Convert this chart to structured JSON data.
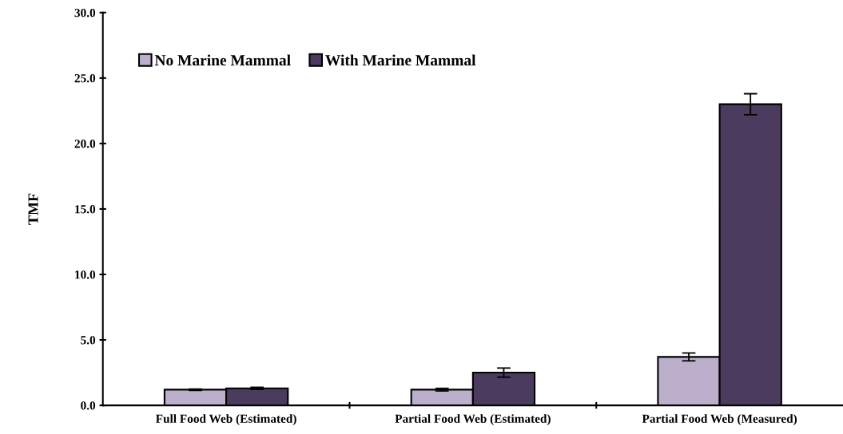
{
  "chart_data": {
    "type": "bar",
    "ylabel": "TMF",
    "categories": [
      "Full Food Web (Estimated)",
      "Partial Food Web (Estimated)",
      "Partial Food Web (Measured)"
    ],
    "series": [
      {
        "name": "No Marine Mammal",
        "color": "#bcafcc",
        "values": [
          1.2,
          1.2,
          3.7
        ],
        "errors": [
          0.05,
          0.1,
          0.3
        ]
      },
      {
        "name": "With Marine Mammal",
        "color": "#4b3c5f",
        "values": [
          1.3,
          2.5,
          23.0
        ],
        "errors": [
          0.08,
          0.35,
          0.8
        ]
      }
    ],
    "ylim": [
      0,
      30
    ],
    "yticks": [
      {
        "value": 0,
        "label": "0.0"
      },
      {
        "value": 5,
        "label": "5.0"
      },
      {
        "value": 10,
        "label": "10.0"
      },
      {
        "value": 15,
        "label": "15.0"
      },
      {
        "value": 20,
        "label": "20.0"
      },
      {
        "value": 25,
        "label": "25.0"
      },
      {
        "value": 30,
        "label": "30.0"
      }
    ],
    "grid": false,
    "legend": "top left"
  }
}
